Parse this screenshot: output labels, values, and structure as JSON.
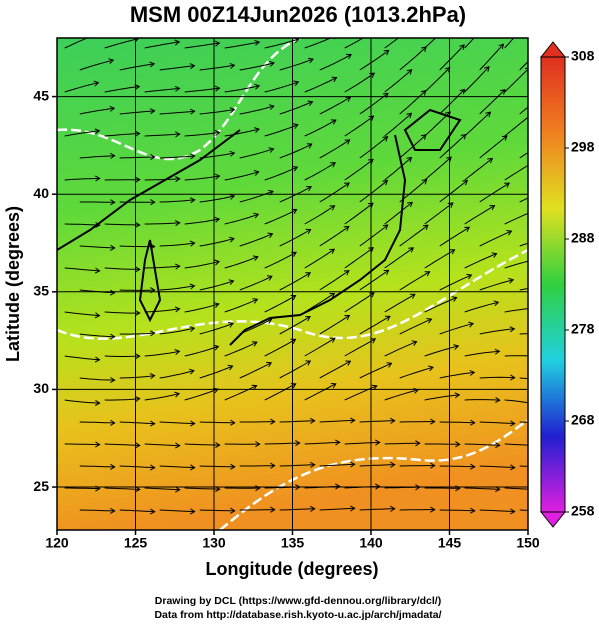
{
  "chart_data": {
    "type": "map",
    "title": "MSM 00Z14Jun2026 (1013.2hPa)",
    "xlabel": "Longitude (degrees)",
    "ylabel": "Latitude  (degrees)",
    "xlim": [
      120,
      150
    ],
    "ylim": [
      22.8,
      48
    ],
    "xticks": [
      120,
      125,
      130,
      135,
      140,
      145,
      150
    ],
    "yticks": [
      25,
      30,
      35,
      40,
      45
    ],
    "grid": true,
    "colorbar": {
      "lim": [
        258,
        308
      ],
      "ticks": [
        258,
        268,
        278,
        288,
        298,
        308
      ],
      "colormap": [
        "#e020e0",
        "#2020d0",
        "#20d0e0",
        "#30d040",
        "#e0e020",
        "#f08020",
        "#e03020"
      ]
    },
    "footer": [
      "Drawing by DCL (https://www.gfd-dennou.org/library/dcl/)",
      "Data from http://database.rish.kyoto-u.ac.jp/arch/jmadata/"
    ]
  }
}
